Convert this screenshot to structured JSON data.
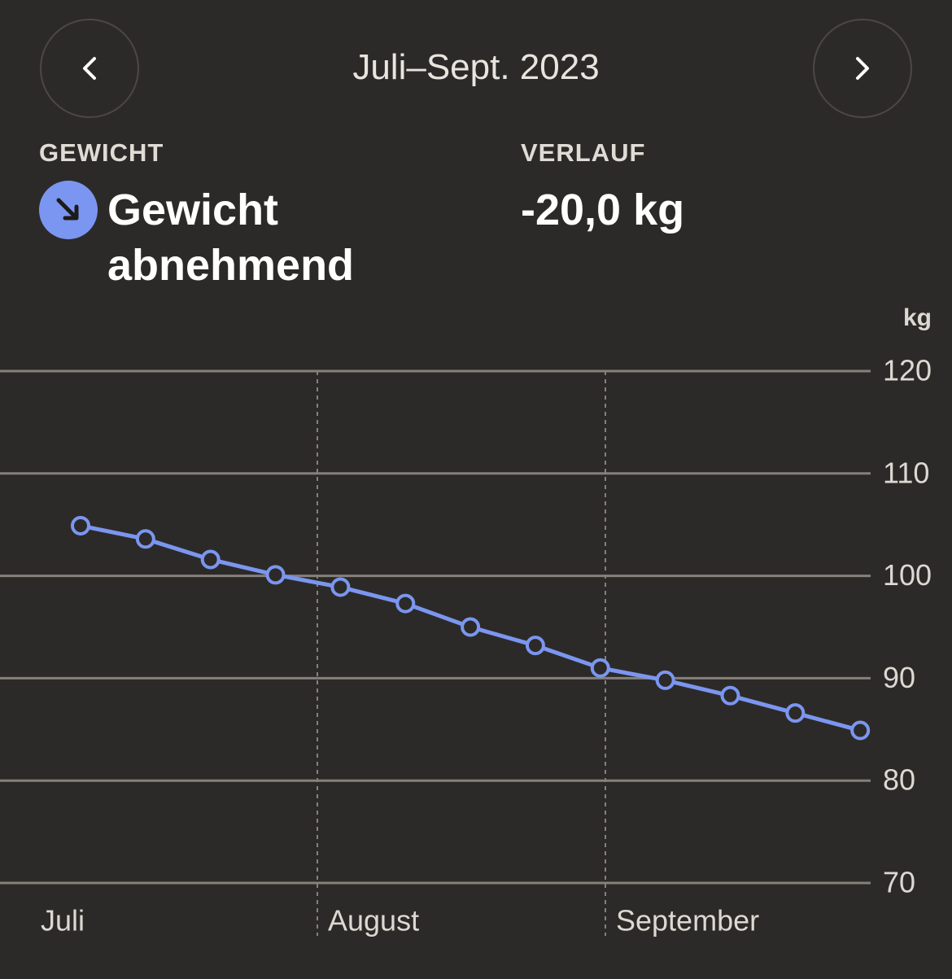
{
  "header": {
    "period": "Juli–Sept. 2023"
  },
  "summary": {
    "metric_label": "GEWICHT",
    "trend": "Gewicht abnehmend",
    "change_label": "VERLAUF",
    "change": "-20,0 kg"
  },
  "chart_data": {
    "type": "line",
    "y_unit": "kg",
    "x_labels": [
      "Juli",
      "August",
      "September"
    ],
    "series": [
      {
        "color": "#7b96f0",
        "values": [
          104.9,
          103.6,
          101.6,
          100.1,
          98.9,
          97.3,
          95.0,
          93.2,
          91.0,
          89.8,
          88.3,
          86.6,
          84.9
        ]
      }
    ],
    "ylim": [
      70,
      120
    ],
    "yticks": [
      70,
      80,
      90,
      100,
      110,
      120
    ],
    "grid": true
  }
}
